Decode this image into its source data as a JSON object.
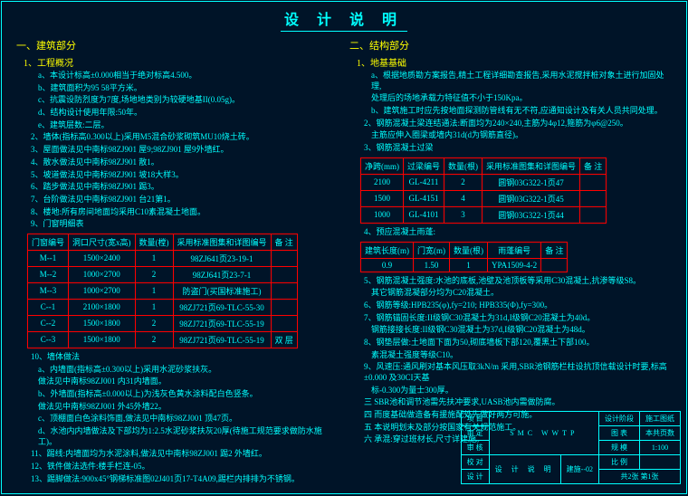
{
  "title": "设 计 说 明",
  "left": {
    "h1": "一、建筑部分",
    "s1": "1、工程概况",
    "s1a": "a、本设计标高±0.000相当于绝对标高4.500。",
    "s1b": "b、建筑面积为95 58平方米。",
    "s1c": "c、抗震设防烈度为7度,场地地类别为较硬地基II(0.05g)。",
    "s1d": "d、结构设计使用年限:50年。",
    "s1e": "e、建筑层数:二层。",
    "s2": "2、墙体(指标高0.300以上)采用M5混合砂浆砌筑MU10烧土砖。",
    "s3": "3、屋面做法见中南标98ZJ901 屋9;98ZJ901 屋9外墙红。",
    "s4": "4、散水做法见中南标98ZJ901 散1。",
    "s5": "5、坡道做法见中南标98ZJ901 坡18大样3。",
    "s6": "6、踏步做法见中南标98ZJ901 踢3。",
    "s7": "7、台阶做法见中南标98ZJ901 台21第1。",
    "s8": "8、楼地:所有房间地面均采用C10素混凝土地面。",
    "s9": "9、门窗明细表",
    "tbl1": {
      "head": [
        "门窗编号",
        "洞口尺寸(宽x高)",
        "数量(樘)",
        "采用标准图集和详图编号",
        "备 注"
      ],
      "rows": [
        [
          "M--1",
          "1500×2400",
          "1",
          "98ZJ641页23-19-1",
          ""
        ],
        [
          "M--2",
          "1000×2700",
          "2",
          "98ZJ641页23-7-1",
          ""
        ],
        [
          "M--3",
          "1000×2700",
          "1",
          "防盗门(买国标准施工)",
          ""
        ],
        [
          "C--1",
          "2100×1800",
          "1",
          "98ZJ721页69-TLC-55-30",
          ""
        ],
        [
          "C--2",
          "1500×1800",
          "2",
          "98ZJ721页69-TLC-55-19",
          ""
        ],
        [
          "C--3",
          "1500×1800",
          "2",
          "98ZJ721页69-TLC-55-19",
          "双 层"
        ]
      ]
    },
    "s10": "10、墙体做法",
    "s10a": "a、内墙面(指标高±0.300以上)采用水泥砂浆扶灰。",
    "s10a2": "做法见中南标98ZJ001 内31内墙面。",
    "s10b": "b、外墙面(指标高±0.000以上)为浅灰色黄水涂料配白色竖条。",
    "s10b2": "做法见中南标98ZJ001 外45外墙22。",
    "s10c": "c、顶棚面白色涂料饰面,做法见中南标98ZJ001 顶47页。",
    "s10d": "d、水池内内墙做法及下部均为1:2.5水泥砂浆扶灰20厚(待施工规范要求做防水施工)。",
    "s11": "11、踢线:内墙面均为水泥涂料,做法见中南标98ZJ001 踢2 外墙红。",
    "s12": "12、铁件做法选件:楼手栏连-05。",
    "s13": "13、踢脚做法:900x45°钢梯标准图02J401页17-T4A09,踢栏内排排为不锈钢。"
  },
  "right": {
    "h1": "二、结构部分",
    "s1": "1、地基基础",
    "s1a": "a、根据地质勘方案报告,精土工程详细勘查报告,采用水泥搅拌桩对象土进行加固处理,",
    "s1a2": "处理后的场地承载力特征值不小于150Kpa。",
    "s1b": "b、建筑施工时应先按地面探测防管线有无不符,应通知设计及有关人员共同处理。",
    "s2": "2、钢筋混凝土梁连结通法:断面均为240×240,主筋为4φ12,箍筋为φ6@250。",
    "s2a": "主筋应伸入圈梁或墙内31d(d为钢筋直径)。",
    "s3": "3、钢筋混凝土过梁",
    "tbl2": {
      "head": [
        "净跨(mm)",
        "过梁编号",
        "数量(根)",
        "采用标准图集和详图编号",
        "备 注"
      ],
      "rows": [
        [
          "2100",
          "GL-4211",
          "2",
          "圆钢03G322-1页47",
          ""
        ],
        [
          "1500",
          "GL-4151",
          "4",
          "圆钢03G322-1页45",
          ""
        ],
        [
          "1000",
          "GL-4101",
          "3",
          "圆钢03G322-1页44",
          ""
        ]
      ]
    },
    "s4": "4、预应混凝土雨蓬:",
    "tbl3": {
      "head": [
        "建筑长度(m)",
        "门宽(m)",
        "数量(根)",
        "雨蓬编号",
        "备 注"
      ],
      "rows": [
        [
          "0.9",
          "1.50",
          "1",
          "YPA1509-4-2",
          ""
        ]
      ]
    },
    "s5": "5、钢筋混凝土强度:水池的底板,池壁及池顶板等采用C30混凝土,抗渗等级S8。",
    "s5a": "其它钢筋混凝部分均为C20混凝土。",
    "s6": "6、钢筋等级:HPB235(φ),fy=210; HPB335(Φ),fy=300。",
    "s7": "7、钢筋锚固长度:II级钢C30混凝土为31d,I级钢C20混凝土为40d。",
    "s7a": "钢筋接接长度:II级钢C30混凝土为37d,I级钢C20混凝土为48d。",
    "s8": "8、钢垫层做:土地面下面为50,砌底墙板下部120,覆黑土下部100。",
    "s8a": "素混凝土强度等级C10。",
    "s9": "9、风速压:通风刷对基本风压取3kN/m 采用,SBR池钢筋栏柱设抗顶信载设计时要,标高±0.000 及30CI天基",
    "s9a": "标-0.300为量士300厚。",
    "s10": "三 SBR池和调节池需先扶冲要求,UASB池内需做防腐。",
    "s11": "四 而度基础做造备有援施配处先做好两方可施。",
    "s12": "五 本说明划末及部分按国家有关规范施工。",
    "s13": "六 承混:穿过班材长,尺寸详建施。"
  },
  "tb": {
    "proj": "SMC WWTP",
    "draw": "设 计 说 明",
    "no": "建施--02",
    "scale": "1:100",
    "sheet": "共2张 第1张",
    "r1": "设计阶段",
    "r1v": "施工图纸",
    "r2": "图 表",
    "r2v": "本共页数",
    "r3": "校 对",
    "r4": "规 模",
    "r5": "设 计",
    "r6": "审 核",
    "r7": "审 定",
    "r8": "项 目"
  }
}
